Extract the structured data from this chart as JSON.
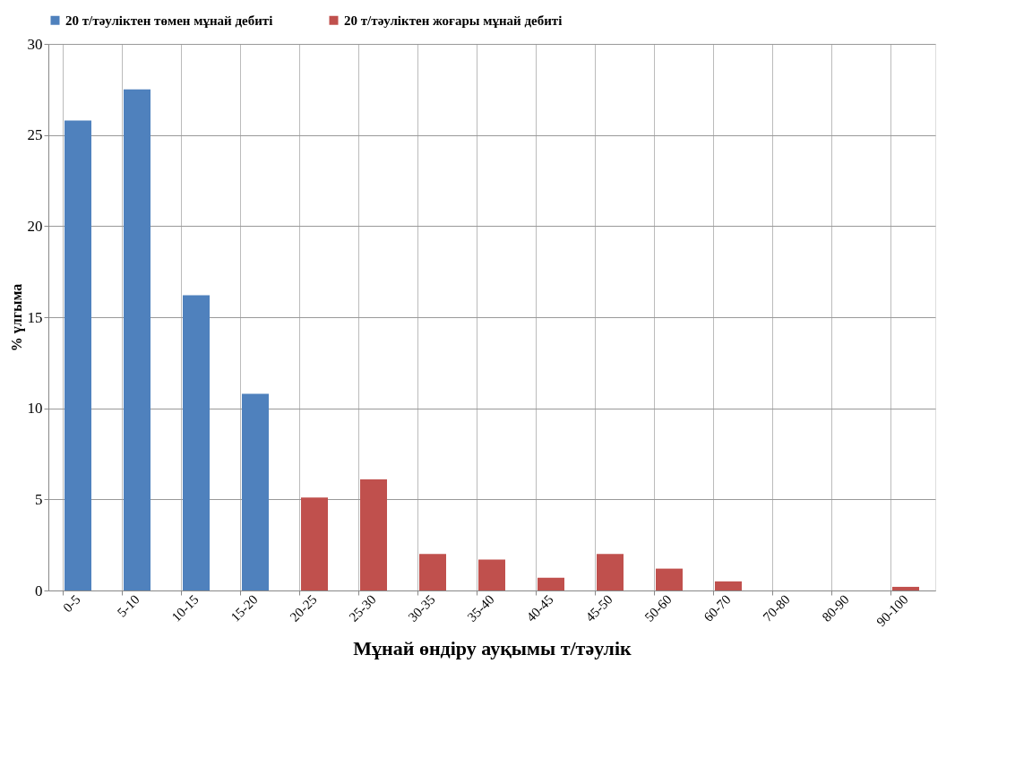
{
  "chart_data": {
    "type": "bar",
    "xlabel": "Мұнай өндіру ауқымы т/тәулік",
    "ylabel": "% үлгыма",
    "categories": [
      "0-5",
      "5-10",
      "10-15",
      "15-20",
      "20-25",
      "25-30",
      "30-35",
      "35-40",
      "40-45",
      "45-50",
      "50-60",
      "60-70",
      "70-80",
      "80-90",
      "90-100"
    ],
    "series": [
      {
        "name": "20 т/тәуліктен төмен мұнай дебиті",
        "color": "#4f81bd",
        "values": [
          25.8,
          27.5,
          16.2,
          10.8,
          null,
          null,
          null,
          null,
          null,
          null,
          null,
          null,
          null,
          null,
          null
        ]
      },
      {
        "name": "20 т/тәуліктен жоғары мұнай дебиті",
        "color": "#c0504d",
        "values": [
          null,
          null,
          null,
          null,
          5.1,
          6.1,
          2.0,
          1.7,
          0.7,
          2.0,
          1.2,
          0.5,
          0,
          0,
          0.2
        ]
      }
    ],
    "ylim": [
      0,
      30
    ],
    "yticks": [
      0,
      5,
      10,
      15,
      20,
      25,
      30
    ],
    "grid": true,
    "legend": "top"
  }
}
